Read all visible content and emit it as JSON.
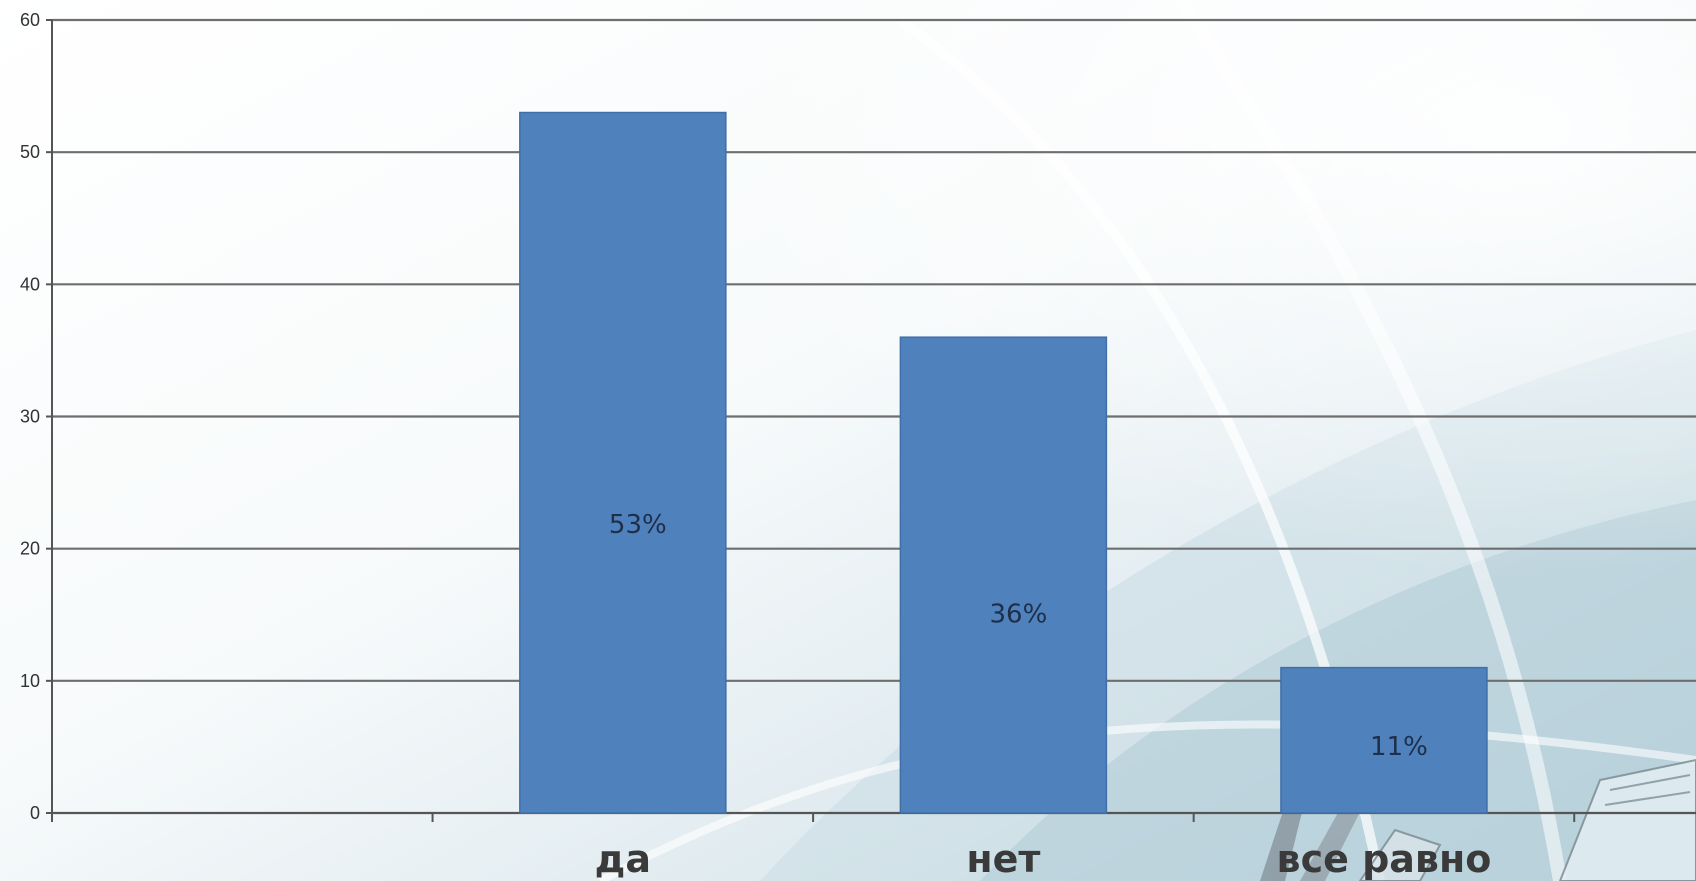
{
  "chart_data": {
    "type": "bar",
    "categories": [
      "",
      "да",
      "нет",
      "все равно"
    ],
    "values": [
      null,
      53,
      36,
      11
    ],
    "data_labels": [
      "",
      "53%",
      "36%",
      "11%"
    ],
    "ylim": [
      0,
      60
    ],
    "y_ticks": [
      "0",
      "10",
      "20",
      "30",
      "40",
      "50",
      "60"
    ],
    "grid": true,
    "legend": "none",
    "bar_color": "#4f81bd",
    "gridline_color": "#6e6e6e"
  }
}
